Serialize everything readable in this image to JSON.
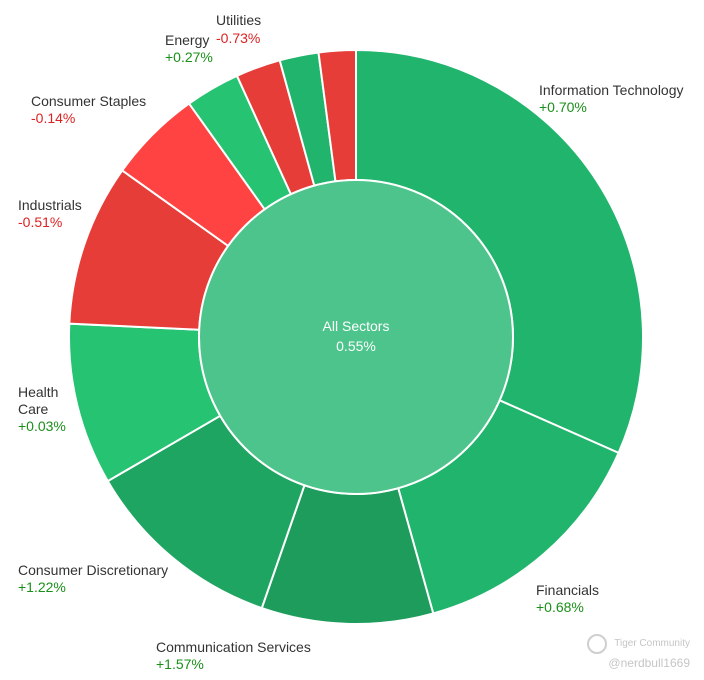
{
  "chart_data": {
    "type": "pie",
    "center": {
      "title": "All Sectors",
      "value": "0.55%"
    },
    "series": [
      {
        "name": "Information Technology",
        "change": "+0.70%",
        "share": 28.8,
        "color": "#21b46d"
      },
      {
        "name": "Financials",
        "change": "+0.68%",
        "share": 12.8,
        "color": "#21b46d"
      },
      {
        "name": "Communication Services",
        "change": "+1.57%",
        "share": 8.8,
        "color": "#1d9c5b"
      },
      {
        "name": "Consumer Discretionary",
        "change": "+1.22%",
        "share": 10.3,
        "color": "#1fa562"
      },
      {
        "name": "Health Care",
        "change": "+0.03%",
        "share": 8.3,
        "color": "#26c373"
      },
      {
        "name": "Industrials",
        "change": "-0.51%",
        "share": 8.3,
        "color": "#e63d39"
      },
      {
        "name": "Consumer Staples",
        "change": "-0.14%",
        "share": 4.8,
        "color": "#ff4242"
      },
      {
        "name": "Energy",
        "change": "+0.27%",
        "share": 2.8,
        "color": "#26c373"
      },
      {
        "name": "Utilities",
        "change": "-0.73%",
        "share": 2.3,
        "color": "#e63d39"
      },
      {
        "name": "",
        "change": "",
        "share": 2.0,
        "color": "#21b46d"
      },
      {
        "name": "",
        "change": "",
        "share": 1.9,
        "color": "#e63d39"
      }
    ],
    "colors": {
      "positive_text": "#1a8f1a",
      "negative_text": "#dd2222",
      "center_fill": "#4dc48b"
    }
  },
  "watermark": {
    "brand": "Tiger Community",
    "user": "@nerdbull1669"
  }
}
